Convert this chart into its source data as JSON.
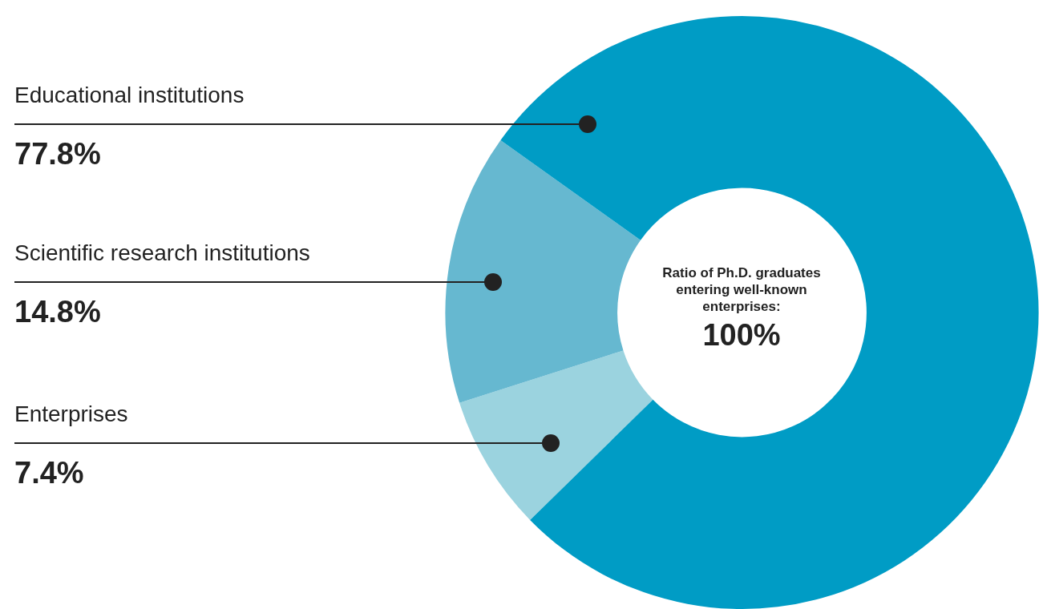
{
  "chart_data": {
    "type": "donut",
    "title": "Ratio of Ph.D. graduates entering well-known enterprises:",
    "categories": [
      "Educational institutions",
      "Scientific research institutions",
      "Enterprises"
    ],
    "values": [
      77.8,
      14.8,
      7.4
    ],
    "value_labels": [
      "77.8%",
      "14.8%",
      "7.4%"
    ],
    "colors": [
      "#009cc5",
      "#66b8d0",
      "#9bd3df"
    ],
    "annotations": [
      "100%"
    ],
    "legend": false
  }
}
